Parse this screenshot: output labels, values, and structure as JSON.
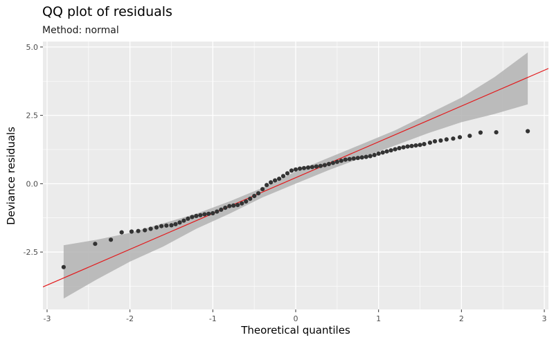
{
  "chart_data": {
    "type": "scatter",
    "title": "QQ plot of residuals",
    "subtitle": "Method: normal",
    "xlabel": "Theoretical quantiles",
    "ylabel": "Deviance residuals",
    "xlim": [
      -3.05,
      3.05
    ],
    "ylim": [
      -4.6,
      5.2
    ],
    "xticks": [
      -3,
      -2,
      -1,
      0,
      1,
      2,
      3
    ],
    "xtick_labels": [
      "-3",
      "-2",
      "-1",
      "0",
      "1",
      "2",
      "3"
    ],
    "yticks": [
      -2.5,
      0.0,
      2.5,
      5.0
    ],
    "ytick_labels": [
      "-2.5",
      "0.0",
      "2.5",
      "5.0"
    ],
    "grid": true,
    "colors": {
      "panel": "#ebebeb",
      "grid": "#ffffff",
      "points": "#333333",
      "reference_line": "#e31a1c",
      "band": "#b3b3b3"
    },
    "reference_line": {
      "intercept": 0.22,
      "slope": 1.31
    },
    "confidence_band": {
      "x": [
        -2.8,
        -2.4,
        -2.0,
        -1.6,
        -1.2,
        -0.8,
        -0.4,
        0.0,
        0.4,
        0.8,
        1.2,
        1.6,
        2.0,
        2.4,
        2.8
      ],
      "upper": [
        -2.25,
        -2.05,
        -1.8,
        -1.45,
        -1.1,
        -0.65,
        -0.15,
        0.45,
        0.95,
        1.45,
        1.95,
        2.55,
        3.15,
        3.9,
        4.8
      ],
      "lower": [
        -4.2,
        -3.5,
        -2.85,
        -2.3,
        -1.65,
        -1.1,
        -0.5,
        0.0,
        0.5,
        0.95,
        1.4,
        1.85,
        2.25,
        2.55,
        2.9
      ]
    },
    "points": {
      "x": [
        -2.8,
        -2.42,
        -2.23,
        -2.1,
        -1.98,
        -1.9,
        -1.82,
        -1.75,
        -1.68,
        -1.62,
        -1.56,
        -1.5,
        -1.45,
        -1.4,
        -1.35,
        -1.3,
        -1.25,
        -1.2,
        -1.15,
        -1.1,
        -1.05,
        -1.0,
        -0.95,
        -0.9,
        -0.85,
        -0.8,
        -0.75,
        -0.7,
        -0.65,
        -0.6,
        -0.55,
        -0.5,
        -0.45,
        -0.4,
        -0.35,
        -0.3,
        -0.25,
        -0.2,
        -0.15,
        -0.1,
        -0.05,
        0.0,
        0.05,
        0.1,
        0.15,
        0.2,
        0.25,
        0.3,
        0.35,
        0.4,
        0.45,
        0.5,
        0.55,
        0.6,
        0.65,
        0.7,
        0.75,
        0.8,
        0.85,
        0.9,
        0.95,
        1.0,
        1.05,
        1.1,
        1.15,
        1.2,
        1.25,
        1.3,
        1.35,
        1.4,
        1.45,
        1.5,
        1.55,
        1.62,
        1.68,
        1.75,
        1.82,
        1.9,
        1.98,
        2.1,
        2.23,
        2.42,
        2.8
      ],
      "y": [
        -3.05,
        -2.2,
        -2.05,
        -1.78,
        -1.75,
        -1.73,
        -1.7,
        -1.65,
        -1.6,
        -1.55,
        -1.53,
        -1.52,
        -1.48,
        -1.42,
        -1.35,
        -1.28,
        -1.22,
        -1.18,
        -1.15,
        -1.12,
        -1.1,
        -1.08,
        -1.02,
        -0.95,
        -0.88,
        -0.82,
        -0.8,
        -0.78,
        -0.72,
        -0.65,
        -0.55,
        -0.45,
        -0.35,
        -0.2,
        -0.05,
        0.05,
        0.12,
        0.18,
        0.28,
        0.38,
        0.48,
        0.52,
        0.55,
        0.57,
        0.59,
        0.61,
        0.63,
        0.65,
        0.68,
        0.72,
        0.76,
        0.8,
        0.84,
        0.88,
        0.9,
        0.92,
        0.94,
        0.96,
        0.98,
        1.01,
        1.05,
        1.1,
        1.14,
        1.18,
        1.22,
        1.26,
        1.3,
        1.33,
        1.36,
        1.38,
        1.4,
        1.42,
        1.45,
        1.5,
        1.55,
        1.58,
        1.62,
        1.65,
        1.7,
        1.75,
        1.87,
        1.88,
        1.92
      ]
    }
  }
}
